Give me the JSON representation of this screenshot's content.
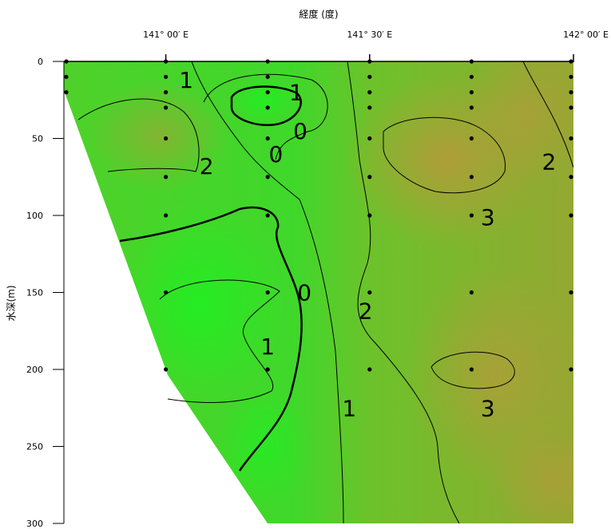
{
  "chart_data": {
    "type": "heatmap",
    "title": "",
    "xlabel": "経度 (度)",
    "ylabel": "水深(m)",
    "x_ticks": [
      "141° 00′ E",
      "141° 30′ E",
      "142° 00′ E"
    ],
    "y_ticks": [
      0,
      50,
      100,
      150,
      200,
      250,
      300
    ],
    "xlim": [
      140.75,
      142.0
    ],
    "ylim": [
      0,
      300
    ],
    "y_inverted": true,
    "grid": false,
    "colors": {
      "low": "#22dd22",
      "mid": "#66cc22",
      "high": "#b59a3a"
    },
    "stations": [
      {
        "lon": 140.75,
        "depths": [
          0,
          10,
          20
        ]
      },
      {
        "lon": 141.0,
        "depths": [
          0,
          10,
          20,
          30,
          50,
          75,
          100,
          150,
          200
        ]
      },
      {
        "lon": 141.25,
        "depths": [
          0,
          10,
          20,
          30,
          50,
          75,
          100,
          150,
          200
        ]
      },
      {
        "lon": 141.5,
        "depths": [
          0,
          10,
          20,
          30,
          50,
          75,
          100,
          150,
          200
        ]
      },
      {
        "lon": 141.75,
        "depths": [
          0,
          10,
          20,
          30,
          50,
          75,
          100,
          150,
          200
        ]
      },
      {
        "lon": 142.0,
        "depths": [
          0,
          10,
          20,
          30,
          50,
          75,
          100,
          150,
          200
        ]
      }
    ],
    "contour_labels": [
      {
        "text": "1",
        "lon": 141.05,
        "depth": 12
      },
      {
        "text": "1",
        "lon": 141.32,
        "depth": 20
      },
      {
        "text": "0",
        "lon": 141.33,
        "depth": 45
      },
      {
        "text": "0",
        "lon": 141.27,
        "depth": 60
      },
      {
        "text": "2",
        "lon": 141.1,
        "depth": 68
      },
      {
        "text": "2",
        "lon": 141.94,
        "depth": 65
      },
      {
        "text": "3",
        "lon": 141.79,
        "depth": 101
      },
      {
        "text": "0",
        "lon": 141.34,
        "depth": 150
      },
      {
        "text": "2",
        "lon": 141.49,
        "depth": 162
      },
      {
        "text": "1",
        "lon": 141.25,
        "depth": 185
      },
      {
        "text": "1",
        "lon": 141.45,
        "depth": 225
      },
      {
        "text": "3",
        "lon": 141.79,
        "depth": 225
      }
    ]
  }
}
